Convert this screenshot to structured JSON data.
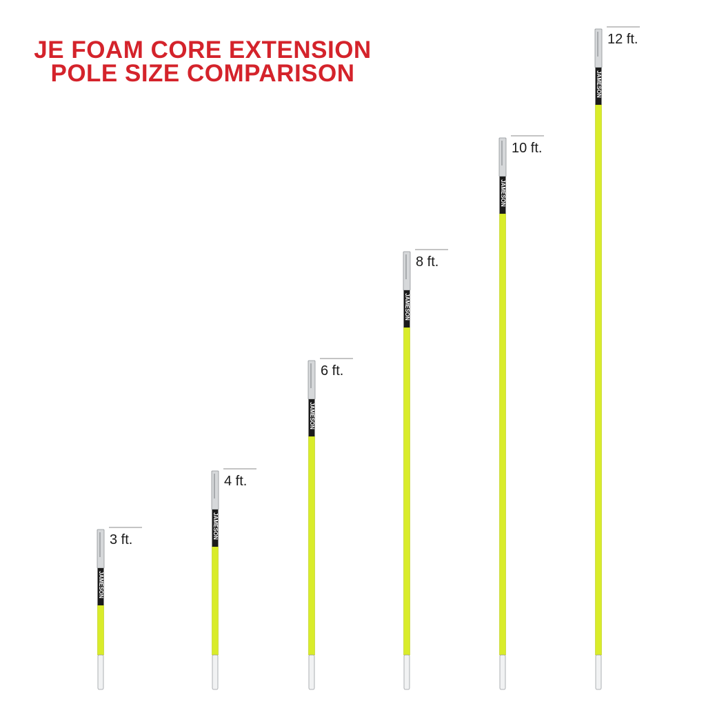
{
  "title": [
    "JE FOAM CORE EXTENSION",
    "POLE SIZE COMPARISON"
  ],
  "brand": "JAMESON",
  "poles": [
    {
      "label": "3 ft."
    },
    {
      "label": "4 ft."
    },
    {
      "label": "6 ft."
    },
    {
      "label": "8 ft."
    },
    {
      "label": "10 ft."
    },
    {
      "label": "12 ft."
    }
  ]
}
